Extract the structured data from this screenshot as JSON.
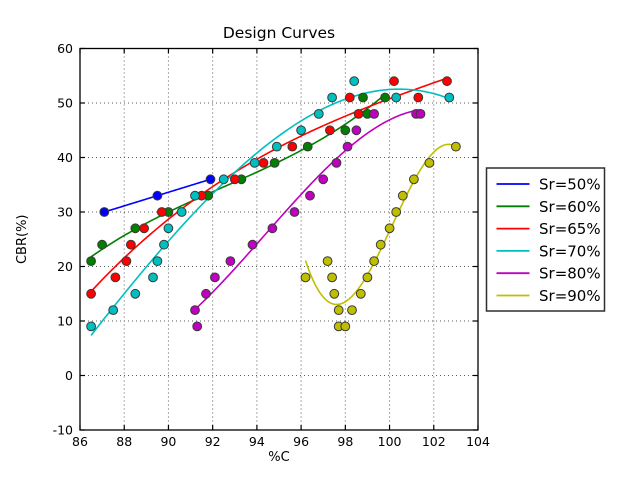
{
  "title": "Design Curves",
  "axes": {
    "xlabel": "%C",
    "ylabel": "CBR(%)",
    "xlim": [
      86,
      104
    ],
    "ylim": [
      -10,
      60
    ],
    "xticks": [
      86,
      88,
      90,
      92,
      94,
      96,
      98,
      100,
      102,
      104
    ],
    "yticks": [
      -10,
      0,
      10,
      20,
      30,
      40,
      50,
      60
    ],
    "xtick_labels": [
      "86",
      "88",
      "90",
      "92",
      "94",
      "96",
      "98",
      "100",
      "102",
      "104"
    ],
    "ytick_labels": [
      "-10",
      "0",
      "10",
      "20",
      "30",
      "40",
      "50",
      "60"
    ],
    "grid": true,
    "grid_style": "dotted"
  },
  "legend": {
    "position": "right-outside",
    "entries": [
      {
        "label": "Sr=50%",
        "color": "#0000ff"
      },
      {
        "label": "Sr=60%",
        "color": "#007f00"
      },
      {
        "label": "Sr=65%",
        "color": "#ff0000"
      },
      {
        "label": "Sr=70%",
        "color": "#00bfbf"
      },
      {
        "label": "Sr=80%",
        "color": "#bf00bf"
      },
      {
        "label": "Sr=90%",
        "color": "#bfbf00"
      }
    ]
  },
  "chart_data": {
    "type": "scatter",
    "title": "Design Curves",
    "xlabel": "%C",
    "ylabel": "CBR(%)",
    "xlim": [
      86,
      104
    ],
    "ylim": [
      -10,
      60
    ],
    "grid": true,
    "legend_position": "right-outside",
    "marker_edge_color": "#3a3a3a",
    "series": [
      {
        "name": "Sr=50%",
        "color": "#0000ff",
        "fit_degree": 1,
        "points": [
          [
            87.1,
            30
          ],
          [
            89.5,
            33
          ],
          [
            91.9,
            36
          ]
        ]
      },
      {
        "name": "Sr=60%",
        "color": "#007f00",
        "fit_degree": 3,
        "points": [
          [
            86.5,
            21
          ],
          [
            87.0,
            24
          ],
          [
            88.5,
            27
          ],
          [
            90.0,
            30
          ],
          [
            91.8,
            33
          ],
          [
            93.3,
            36
          ],
          [
            94.8,
            39
          ],
          [
            96.3,
            42
          ],
          [
            98.0,
            45
          ],
          [
            99.0,
            48
          ],
          [
            98.8,
            51
          ],
          [
            99.8,
            51
          ]
        ]
      },
      {
        "name": "Sr=65%",
        "color": "#ff0000",
        "fit_degree": 3,
        "points": [
          [
            86.5,
            15
          ],
          [
            87.6,
            18
          ],
          [
            88.1,
            21
          ],
          [
            88.3,
            24
          ],
          [
            88.9,
            27
          ],
          [
            89.7,
            30
          ],
          [
            91.5,
            33
          ],
          [
            93.0,
            36
          ],
          [
            94.3,
            39
          ],
          [
            95.6,
            42
          ],
          [
            97.3,
            45
          ],
          [
            98.6,
            48
          ],
          [
            98.2,
            51
          ],
          [
            101.3,
            51
          ],
          [
            100.2,
            54
          ],
          [
            102.6,
            54
          ]
        ]
      },
      {
        "name": "Sr=70%",
        "color": "#00bfbf",
        "fit_degree": 3,
        "points": [
          [
            86.5,
            9
          ],
          [
            87.5,
            12
          ],
          [
            88.5,
            15
          ],
          [
            89.3,
            18
          ],
          [
            89.5,
            21
          ],
          [
            89.8,
            24
          ],
          [
            90.0,
            27
          ],
          [
            90.6,
            30
          ],
          [
            91.2,
            33
          ],
          [
            92.5,
            36
          ],
          [
            93.9,
            39
          ],
          [
            94.9,
            42
          ],
          [
            96.0,
            45
          ],
          [
            96.8,
            48
          ],
          [
            97.4,
            51
          ],
          [
            98.4,
            54
          ],
          [
            100.3,
            51
          ],
          [
            102.7,
            51
          ]
        ]
      },
      {
        "name": "Sr=80%",
        "color": "#bf00bf",
        "fit_degree": 3,
        "points": [
          [
            91.3,
            9
          ],
          [
            91.2,
            12
          ],
          [
            91.7,
            15
          ],
          [
            92.1,
            18
          ],
          [
            92.8,
            21
          ],
          [
            93.8,
            24
          ],
          [
            94.7,
            27
          ],
          [
            95.7,
            30
          ],
          [
            96.4,
            33
          ],
          [
            97.0,
            36
          ],
          [
            97.6,
            39
          ],
          [
            98.1,
            42
          ],
          [
            98.5,
            45
          ],
          [
            99.3,
            48
          ],
          [
            101.2,
            48
          ],
          [
            101.4,
            48
          ]
        ]
      },
      {
        "name": "Sr=90%",
        "color": "#bfbf00",
        "fit_degree": 3,
        "points": [
          [
            96.2,
            18
          ],
          [
            97.2,
            21
          ],
          [
            97.4,
            18
          ],
          [
            97.5,
            15
          ],
          [
            97.7,
            12
          ],
          [
            97.7,
            9
          ],
          [
            98.0,
            9
          ],
          [
            98.3,
            12
          ],
          [
            98.7,
            15
          ],
          [
            99.0,
            18
          ],
          [
            99.3,
            21
          ],
          [
            99.6,
            24
          ],
          [
            100.0,
            27
          ],
          [
            100.3,
            30
          ],
          [
            100.6,
            33
          ],
          [
            101.1,
            36
          ],
          [
            101.8,
            39
          ],
          [
            103.0,
            42
          ]
        ]
      }
    ]
  }
}
